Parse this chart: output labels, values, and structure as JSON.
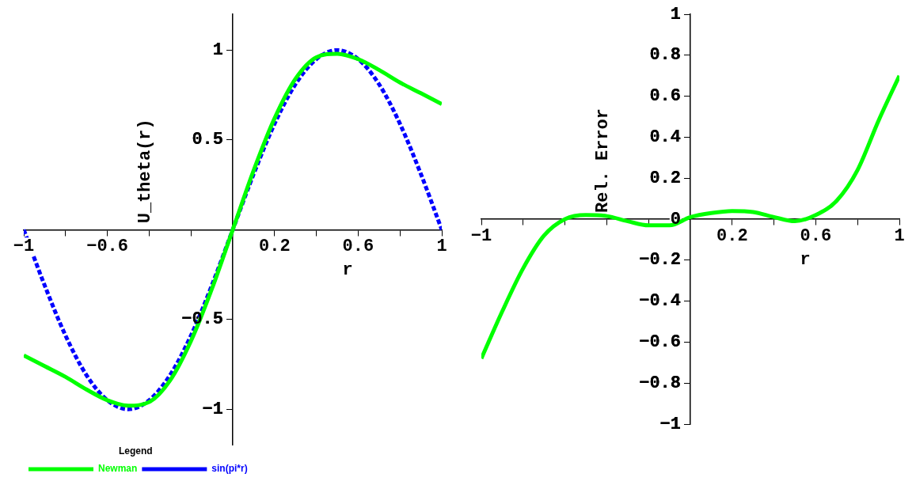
{
  "chart_data": [
    {
      "type": "line",
      "xlabel": "r",
      "ylabel": "U_theta(r)",
      "legend": "bottom",
      "legend_title": "Legend",
      "grid": false,
      "marker": "none",
      "xlim": [
        -1,
        1
      ],
      "ylim": [
        -1.2,
        1.2
      ],
      "xticks": [
        -1,
        {
          "value": -0.8,
          "label": null
        },
        -0.6,
        {
          "value": -0.4,
          "label": null
        },
        {
          "value": -0.2,
          "label": null
        },
        0.2,
        {
          "value": 0.4,
          "label": null
        },
        0.6,
        {
          "value": 0.8,
          "label": null
        },
        1
      ],
      "yticks": [
        -1,
        -0.5,
        0.5,
        1
      ],
      "x": [
        -1,
        -0.9,
        -0.8,
        -0.7,
        -0.6,
        -0.5,
        -0.4,
        -0.3,
        -0.2,
        -0.1,
        0,
        0.1,
        0.2,
        0.3,
        0.4,
        0.5,
        0.6,
        0.7,
        0.8,
        0.9,
        1
      ],
      "series": [
        {
          "name": "Newman",
          "color": "#00ff00",
          "line_style": "solid",
          "values": [
            -0.7,
            -0.76,
            -0.82,
            -0.89,
            -0.95,
            -0.98,
            -0.96,
            -0.84,
            -0.62,
            -0.33,
            0,
            0.33,
            0.62,
            0.84,
            0.96,
            0.98,
            0.95,
            0.89,
            0.82,
            0.76,
            0.7
          ]
        },
        {
          "name": "sin(pi*r)",
          "color": "#0000ff",
          "line_style": "dashed",
          "values": [
            0,
            -0.31,
            -0.59,
            -0.81,
            -0.95,
            -1,
            -0.95,
            -0.81,
            -0.59,
            -0.31,
            0,
            0.31,
            0.59,
            0.81,
            0.95,
            1,
            0.95,
            0.81,
            0.59,
            0.31,
            0
          ]
        }
      ]
    },
    {
      "type": "line",
      "xlabel": "r",
      "ylabel": "Rel. Error",
      "legend": false,
      "grid": false,
      "marker": "none",
      "xlim": [
        -1,
        1
      ],
      "ylim": [
        -1,
        1
      ],
      "xticks": [
        -1,
        {
          "value": -0.8,
          "label": null
        },
        {
          "value": -0.6,
          "label": null
        },
        {
          "value": -0.4,
          "label": null
        },
        {
          "value": -0.2,
          "label": null
        },
        0.2,
        {
          "value": 0.4,
          "label": null
        },
        0.6,
        {
          "value": 0.8,
          "label": null
        },
        1
      ],
      "yticks": [
        -1,
        -0.8,
        -0.6,
        -0.4,
        -0.2,
        0,
        0.2,
        0.4,
        0.6,
        0.8,
        1
      ],
      "x": [
        -1,
        -0.9,
        -0.8,
        -0.7,
        -0.6,
        -0.5,
        -0.4,
        -0.3,
        -0.2,
        -0.1,
        0,
        0.1,
        0.2,
        0.3,
        0.4,
        0.5,
        0.6,
        0.7,
        0.8,
        0.9,
        1
      ],
      "series": [
        {
          "color": "#00ff00",
          "values": [
            -0.68,
            -0.45,
            -0.24,
            -0.08,
            0,
            0.02,
            0.015,
            -0.01,
            -0.03,
            -0.03,
            0.01,
            0.03,
            0.04,
            0.035,
            0.01,
            -0.01,
            0.02,
            0.09,
            0.24,
            0.48,
            0.7
          ]
        }
      ]
    }
  ]
}
